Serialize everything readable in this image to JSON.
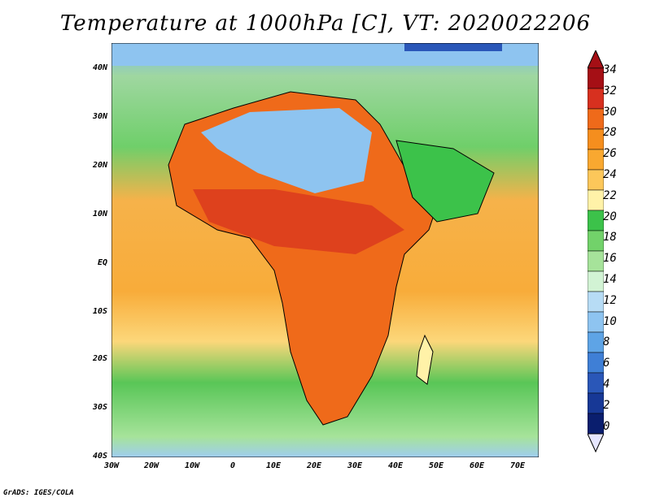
{
  "title": "Temperature at 1000hPa [C], VT: 2020022206",
  "footer": "GrADS: IGES/COLA",
  "map": {
    "lat_labels": [
      "40N",
      "30N",
      "20N",
      "10N",
      "EQ",
      "10S",
      "20S",
      "30S",
      "40S"
    ],
    "lon_labels": [
      "30W",
      "20W",
      "10W",
      "0",
      "10E",
      "20E",
      "30E",
      "40E",
      "50E",
      "60E",
      "70E"
    ]
  },
  "colorbar": {
    "labels": [
      "34",
      "32",
      "30",
      "28",
      "26",
      "24",
      "22",
      "20",
      "18",
      "16",
      "14",
      "12",
      "10",
      "8",
      "6",
      "4",
      "2",
      "0"
    ],
    "colors": [
      "#a50f15",
      "#d7301f",
      "#ef6a1a",
      "#f58e1e",
      "#f9a830",
      "#fcc75a",
      "#fff2a8",
      "#3cc24a",
      "#72d26a",
      "#a6e39a",
      "#d2f3d4",
      "#b7dcf5",
      "#8ec4f0",
      "#5ea4e6",
      "#3f7fd6",
      "#2a57b8",
      "#173896",
      "#0a1e6e"
    ]
  }
}
